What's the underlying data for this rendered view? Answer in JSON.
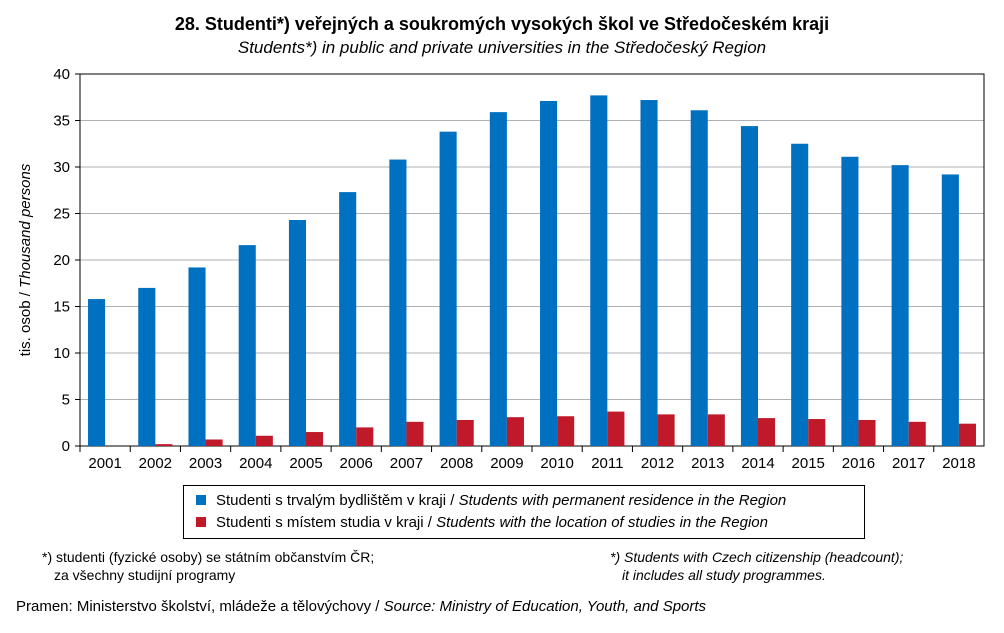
{
  "chart_data": {
    "type": "bar",
    "title": "28. Studenti*) veřejných a soukromých vysokých škol ve Středočeském kraji",
    "subtitle": "Students*) in public and private universities in the Středočeský Region",
    "ylabel": "tis. osob / Thousand persons",
    "ylim": [
      0,
      40
    ],
    "yticks": [
      "0",
      "5",
      "10",
      "15",
      "20",
      "25",
      "30",
      "35",
      "40"
    ],
    "categories": [
      "2001",
      "2002",
      "2003",
      "2004",
      "2005",
      "2006",
      "2007",
      "2008",
      "2009",
      "2010",
      "2011",
      "2012",
      "2013",
      "2014",
      "2015",
      "2016",
      "2017",
      "2018"
    ],
    "series": [
      {
        "name": "Studenti s trvalým bydlištěm v kraji / Students with permanent residence in the Region",
        "label_cz": "Studenti s trvalým bydlištěm v kraji / ",
        "label_en": "Students with permanent residence in the Region",
        "color": "#0070C0",
        "values": [
          15.8,
          17.0,
          19.2,
          21.6,
          24.3,
          27.3,
          30.8,
          33.8,
          35.9,
          37.1,
          37.7,
          37.2,
          36.1,
          34.4,
          32.5,
          31.1,
          30.2,
          29.2
        ]
      },
      {
        "name": "Studenti s místem studia v kraji / Students with the location of studies in the Region",
        "label_cz": "Studenti s místem studia v kraji / ",
        "label_en": "Students with the location of studies in the Region",
        "color": "#C0192A",
        "values": [
          0,
          0.2,
          0.7,
          1.1,
          1.5,
          2.0,
          2.6,
          2.8,
          3.1,
          3.2,
          3.7,
          3.4,
          3.4,
          3.0,
          2.9,
          2.8,
          2.6,
          2.4
        ]
      }
    ],
    "legend": "bottom",
    "grid": true
  },
  "footnotes": {
    "cz1": "*) studenti (fyzické osoby) se státním občanstvím ČR;",
    "cz2": "za všechny studijní programy",
    "en1": "*) Students with Czech citizenship (headcount);",
    "en2": "it includes all study programmes.",
    "source_cz": "Pramen: Ministerstvo školství, mládeže a tělovýchovy / ",
    "source_en": "Source: Ministry of Education, Youth, and Sports"
  }
}
